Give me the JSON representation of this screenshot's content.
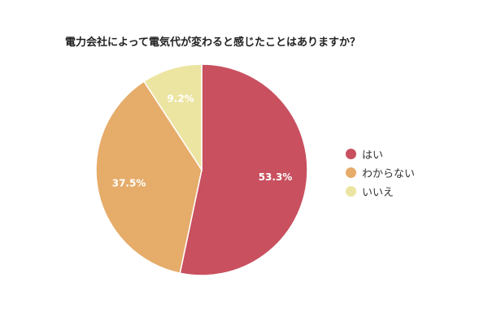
{
  "chart_data": {
    "type": "pie",
    "title": "電力会社によって電気代が変わると感じたことはありますか？",
    "slices": [
      {
        "label": "はい",
        "value": 53.3,
        "value_label": "53.3%",
        "color": "#c8505f"
      },
      {
        "label": "わからない",
        "value": 37.5,
        "value_label": "37.5%",
        "color": "#e6ac6a"
      },
      {
        "label": "いいえ",
        "value": 9.2,
        "value_label": "9.2%",
        "color": "#ece5a2"
      }
    ],
    "start_angle": "12 o'clock",
    "direction": "clockwise",
    "legend_position": "right"
  }
}
